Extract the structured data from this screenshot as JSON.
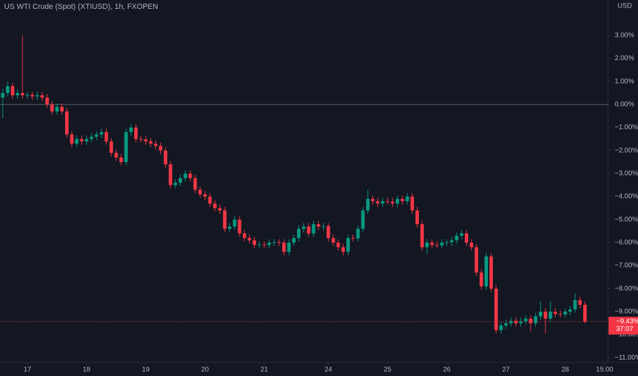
{
  "chart_data": {
    "type": "candlestick",
    "title": "US WTI Crude (Spot) (XTIUSD), 1h, FXOPEN",
    "currency": "USD",
    "up_color": "#089981",
    "down_color": "#f23645",
    "xlim": [
      -11.1,
      235.3
    ],
    "ylim": [
      -11.2,
      4.54
    ],
    "xticks": [
      {
        "value": 0,
        "label": "17"
      },
      {
        "value": 24,
        "label": "18"
      },
      {
        "value": 48,
        "label": "19"
      },
      {
        "value": 72,
        "label": "20"
      },
      {
        "value": 96,
        "label": "21"
      },
      {
        "value": 122,
        "label": "24"
      },
      {
        "value": 146,
        "label": "25"
      },
      {
        "value": 170,
        "label": "26"
      },
      {
        "value": 194,
        "label": "27"
      },
      {
        "value": 218,
        "label": "28"
      },
      {
        "value": 234,
        "label": "15:00"
      }
    ],
    "yticks": [
      {
        "value": 3,
        "label": "3.00%"
      },
      {
        "value": 2,
        "label": "2.00%"
      },
      {
        "value": 1,
        "label": "1.00%"
      },
      {
        "value": 0,
        "label": "0.00%"
      },
      {
        "value": -1,
        "label": "−1.00%"
      },
      {
        "value": -2,
        "label": "−2.00%"
      },
      {
        "value": -3,
        "label": "−3.00%"
      },
      {
        "value": -4,
        "label": "−4.00%"
      },
      {
        "value": -5,
        "label": "−5.00%"
      },
      {
        "value": -6,
        "label": "−6.00%"
      },
      {
        "value": -7,
        "label": "−7.00%"
      },
      {
        "value": -8,
        "label": "−8.00%"
      },
      {
        "value": -9,
        "label": "−9.00%"
      },
      {
        "value": -10,
        "label": "−10.00%"
      },
      {
        "value": -11,
        "label": "−11.00%"
      }
    ],
    "baseline": 0,
    "last_price": {
      "value": -9.43,
      "label": "−9.43%"
    },
    "countdown": "37:07",
    "x": [
      -10,
      -8,
      -6,
      -4,
      -2,
      0,
      2,
      4,
      6,
      8,
      10,
      12,
      14,
      16,
      18,
      20,
      22,
      24,
      26,
      28,
      30,
      32,
      34,
      36,
      38,
      40,
      42,
      44,
      46,
      48,
      50,
      52,
      54,
      56,
      58,
      60,
      62,
      64,
      66,
      68,
      70,
      72,
      74,
      76,
      78,
      80,
      82,
      84,
      86,
      88,
      90,
      92,
      94,
      96,
      98,
      100,
      102,
      104,
      106,
      108,
      110,
      112,
      114,
      116,
      118,
      120,
      122,
      124,
      126,
      128,
      130,
      132,
      134,
      136,
      138,
      140,
      142,
      144,
      146,
      148,
      150,
      152,
      154,
      156,
      158,
      160,
      162,
      164,
      166,
      168,
      170,
      172,
      174,
      176,
      178,
      180,
      182,
      184,
      186,
      188,
      190,
      192,
      194,
      196,
      198,
      200,
      202,
      204,
      206,
      208,
      210,
      212,
      214,
      216,
      218,
      220,
      222,
      224,
      226
    ],
    "ohlc": [
      [
        0.3,
        0.7,
        -0.6,
        0.5
      ],
      [
        0.5,
        1.0,
        0.35,
        0.8
      ],
      [
        0.8,
        0.95,
        0.25,
        0.4
      ],
      [
        0.4,
        0.65,
        0.25,
        0.5
      ],
      [
        0.5,
        3.0,
        0.25,
        0.4
      ],
      [
        0.4,
        0.55,
        0.25,
        0.42
      ],
      [
        0.42,
        0.55,
        0.2,
        0.35
      ],
      [
        0.35,
        0.55,
        0.2,
        0.4
      ],
      [
        0.4,
        0.55,
        0.15,
        0.3
      ],
      [
        0.3,
        0.45,
        -0.15,
        0.0
      ],
      [
        0.0,
        0.15,
        -0.45,
        -0.3
      ],
      [
        -0.3,
        0.05,
        -0.45,
        -0.1
      ],
      [
        -0.1,
        0.05,
        -0.45,
        -0.3
      ],
      [
        -0.3,
        -0.15,
        -1.45,
        -1.3
      ],
      [
        -1.3,
        -1.15,
        -1.85,
        -1.7
      ],
      [
        -1.7,
        -1.35,
        -1.85,
        -1.5
      ],
      [
        -1.5,
        -1.35,
        -1.75,
        -1.6
      ],
      [
        -1.6,
        -1.35,
        -1.75,
        -1.5
      ],
      [
        -1.5,
        -1.25,
        -1.65,
        -1.4
      ],
      [
        -1.4,
        -1.15,
        -1.55,
        -1.3
      ],
      [
        -1.3,
        -1.05,
        -1.45,
        -1.2
      ],
      [
        -1.2,
        -1.05,
        -1.75,
        -1.6
      ],
      [
        -1.6,
        -1.45,
        -2.25,
        -2.1
      ],
      [
        -2.1,
        -1.95,
        -2.45,
        -2.3
      ],
      [
        -2.3,
        -2.15,
        -2.65,
        -2.5
      ],
      [
        -2.5,
        -1.05,
        -2.65,
        -1.2
      ],
      [
        -1.2,
        -0.85,
        -1.35,
        -1.0
      ],
      [
        -1.0,
        -0.85,
        -1.65,
        -1.5
      ],
      [
        -1.5,
        -1.35,
        -1.65,
        -1.52
      ],
      [
        -1.52,
        -1.35,
        -1.75,
        -1.6
      ],
      [
        -1.6,
        -1.45,
        -1.85,
        -1.7
      ],
      [
        -1.7,
        -1.55,
        -1.95,
        -1.8
      ],
      [
        -1.8,
        -1.65,
        -2.15,
        -2.0
      ],
      [
        -2.0,
        -1.85,
        -2.75,
        -2.6
      ],
      [
        -2.6,
        -2.45,
        -3.65,
        -3.5
      ],
      [
        -3.5,
        -3.25,
        -3.65,
        -3.4
      ],
      [
        -3.4,
        -3.05,
        -3.55,
        -3.2
      ],
      [
        -3.2,
        -2.85,
        -3.35,
        -3.0
      ],
      [
        -3.0,
        -2.85,
        -3.35,
        -3.2
      ],
      [
        -3.2,
        -3.05,
        -3.85,
        -3.7
      ],
      [
        -3.7,
        -3.55,
        -4.05,
        -3.9
      ],
      [
        -3.9,
        -3.75,
        -4.15,
        -4.0
      ],
      [
        -4.0,
        -3.85,
        -4.45,
        -4.3
      ],
      [
        -4.3,
        -4.15,
        -4.65,
        -4.5
      ],
      [
        -4.5,
        -4.35,
        -4.75,
        -4.6
      ],
      [
        -4.6,
        -4.45,
        -5.55,
        -5.4
      ],
      [
        -5.4,
        -5.15,
        -5.55,
        -5.3
      ],
      [
        -5.3,
        -4.85,
        -5.45,
        -5.0
      ],
      [
        -5.0,
        -4.85,
        -5.75,
        -5.6
      ],
      [
        -5.6,
        -5.45,
        -5.95,
        -5.8
      ],
      [
        -5.8,
        -5.65,
        -6.05,
        -5.9
      ],
      [
        -5.9,
        -5.75,
        -6.25,
        -6.1
      ],
      [
        -6.1,
        -5.95,
        -6.25,
        -6.08
      ],
      [
        -6.08,
        -5.95,
        -6.25,
        -6.1
      ],
      [
        -6.1,
        -5.85,
        -6.25,
        -6.0
      ],
      [
        -6.0,
        -5.85,
        -6.15,
        -5.98
      ],
      [
        -5.98,
        -5.85,
        -6.15,
        -6.0
      ],
      [
        -6.0,
        -5.85,
        -6.55,
        -6.4
      ],
      [
        -6.4,
        -5.85,
        -6.55,
        -6.0
      ],
      [
        -6.0,
        -5.65,
        -6.15,
        -5.8
      ],
      [
        -5.8,
        -5.25,
        -5.95,
        -5.4
      ],
      [
        -5.4,
        -5.15,
        -5.55,
        -5.3
      ],
      [
        -5.3,
        -5.15,
        -5.75,
        -5.6
      ],
      [
        -5.6,
        -5.05,
        -5.75,
        -5.2
      ],
      [
        -5.2,
        -5.05,
        -5.45,
        -5.3
      ],
      [
        -5.3,
        -5.15,
        -5.45,
        -5.28
      ],
      [
        -5.28,
        -5.15,
        -5.95,
        -5.8
      ],
      [
        -5.8,
        -5.65,
        -6.15,
        -6.0
      ],
      [
        -6.0,
        -5.85,
        -6.35,
        -6.2
      ],
      [
        -6.2,
        -6.05,
        -6.55,
        -6.4
      ],
      [
        -6.4,
        -5.65,
        -6.55,
        -5.8
      ],
      [
        -5.8,
        -5.65,
        -5.95,
        -5.82
      ],
      [
        -5.82,
        -5.25,
        -5.95,
        -5.4
      ],
      [
        -5.4,
        -4.45,
        -5.55,
        -4.6
      ],
      [
        -4.6,
        -3.7,
        -4.75,
        -4.1
      ],
      [
        -4.1,
        -3.95,
        -4.35,
        -4.2
      ],
      [
        -4.2,
        -4.05,
        -4.45,
        -4.3
      ],
      [
        -4.3,
        -4.05,
        -4.45,
        -4.2
      ],
      [
        -4.2,
        -4.05,
        -4.35,
        -4.22
      ],
      [
        -4.22,
        -4.05,
        -4.45,
        -4.3
      ],
      [
        -4.3,
        -3.95,
        -4.45,
        -4.1
      ],
      [
        -4.1,
        -3.95,
        -4.35,
        -4.2
      ],
      [
        -4.2,
        -3.85,
        -4.35,
        -4.0
      ],
      [
        -4.0,
        -3.85,
        -4.75,
        -4.6
      ],
      [
        -4.6,
        -4.45,
        -5.35,
        -5.2
      ],
      [
        -5.2,
        -5.05,
        -6.35,
        -6.2
      ],
      [
        -6.2,
        -5.85,
        -6.5,
        -6.0
      ],
      [
        -6.0,
        -5.85,
        -6.25,
        -6.1
      ],
      [
        -6.1,
        -5.95,
        -6.25,
        -6.12
      ],
      [
        -6.12,
        -5.85,
        -6.25,
        -6.0
      ],
      [
        -6.0,
        -5.85,
        -6.15,
        -5.98
      ],
      [
        -5.98,
        -5.75,
        -6.15,
        -5.9
      ],
      [
        -5.9,
        -5.55,
        -6.05,
        -5.7
      ],
      [
        -5.7,
        -5.45,
        -5.85,
        -5.6
      ],
      [
        -5.6,
        -5.45,
        -6.15,
        -6.0
      ],
      [
        -6.0,
        -5.85,
        -6.35,
        -6.2
      ],
      [
        -6.2,
        -6.05,
        -7.45,
        -7.3
      ],
      [
        -7.3,
        -7.15,
        -8.05,
        -7.9
      ],
      [
        -7.9,
        -6.45,
        -8.05,
        -6.6
      ],
      [
        -6.6,
        -6.45,
        -8.15,
        -8.0
      ],
      [
        -8.0,
        -7.85,
        -9.95,
        -9.8
      ],
      [
        -9.8,
        -9.45,
        -9.95,
        -9.6
      ],
      [
        -9.6,
        -9.35,
        -9.75,
        -9.5
      ],
      [
        -9.5,
        -9.25,
        -9.65,
        -9.4
      ],
      [
        -9.4,
        -9.25,
        -9.65,
        -9.5
      ],
      [
        -9.5,
        -9.25,
        -9.65,
        -9.42
      ],
      [
        -9.42,
        -9.15,
        -9.55,
        -9.3
      ],
      [
        -9.3,
        -9.15,
        -9.85,
        -9.5
      ],
      [
        -9.5,
        -9.05,
        -9.65,
        -9.2
      ],
      [
        -9.2,
        -8.55,
        -9.35,
        -9.0
      ],
      [
        -9.0,
        -8.85,
        -9.95,
        -9.3
      ],
      [
        -9.3,
        -8.55,
        -9.45,
        -9.0
      ],
      [
        -9.0,
        -8.85,
        -9.25,
        -9.1
      ],
      [
        -9.1,
        -8.95,
        -9.25,
        -9.12
      ],
      [
        -9.12,
        -8.85,
        -9.25,
        -9.0
      ],
      [
        -9.0,
        -8.75,
        -9.15,
        -8.9
      ],
      [
        -8.9,
        -8.2,
        -9.05,
        -8.5
      ],
      [
        -8.5,
        -8.35,
        -8.85,
        -8.7
      ],
      [
        -8.7,
        -8.55,
        -9.5,
        -9.43
      ]
    ]
  }
}
